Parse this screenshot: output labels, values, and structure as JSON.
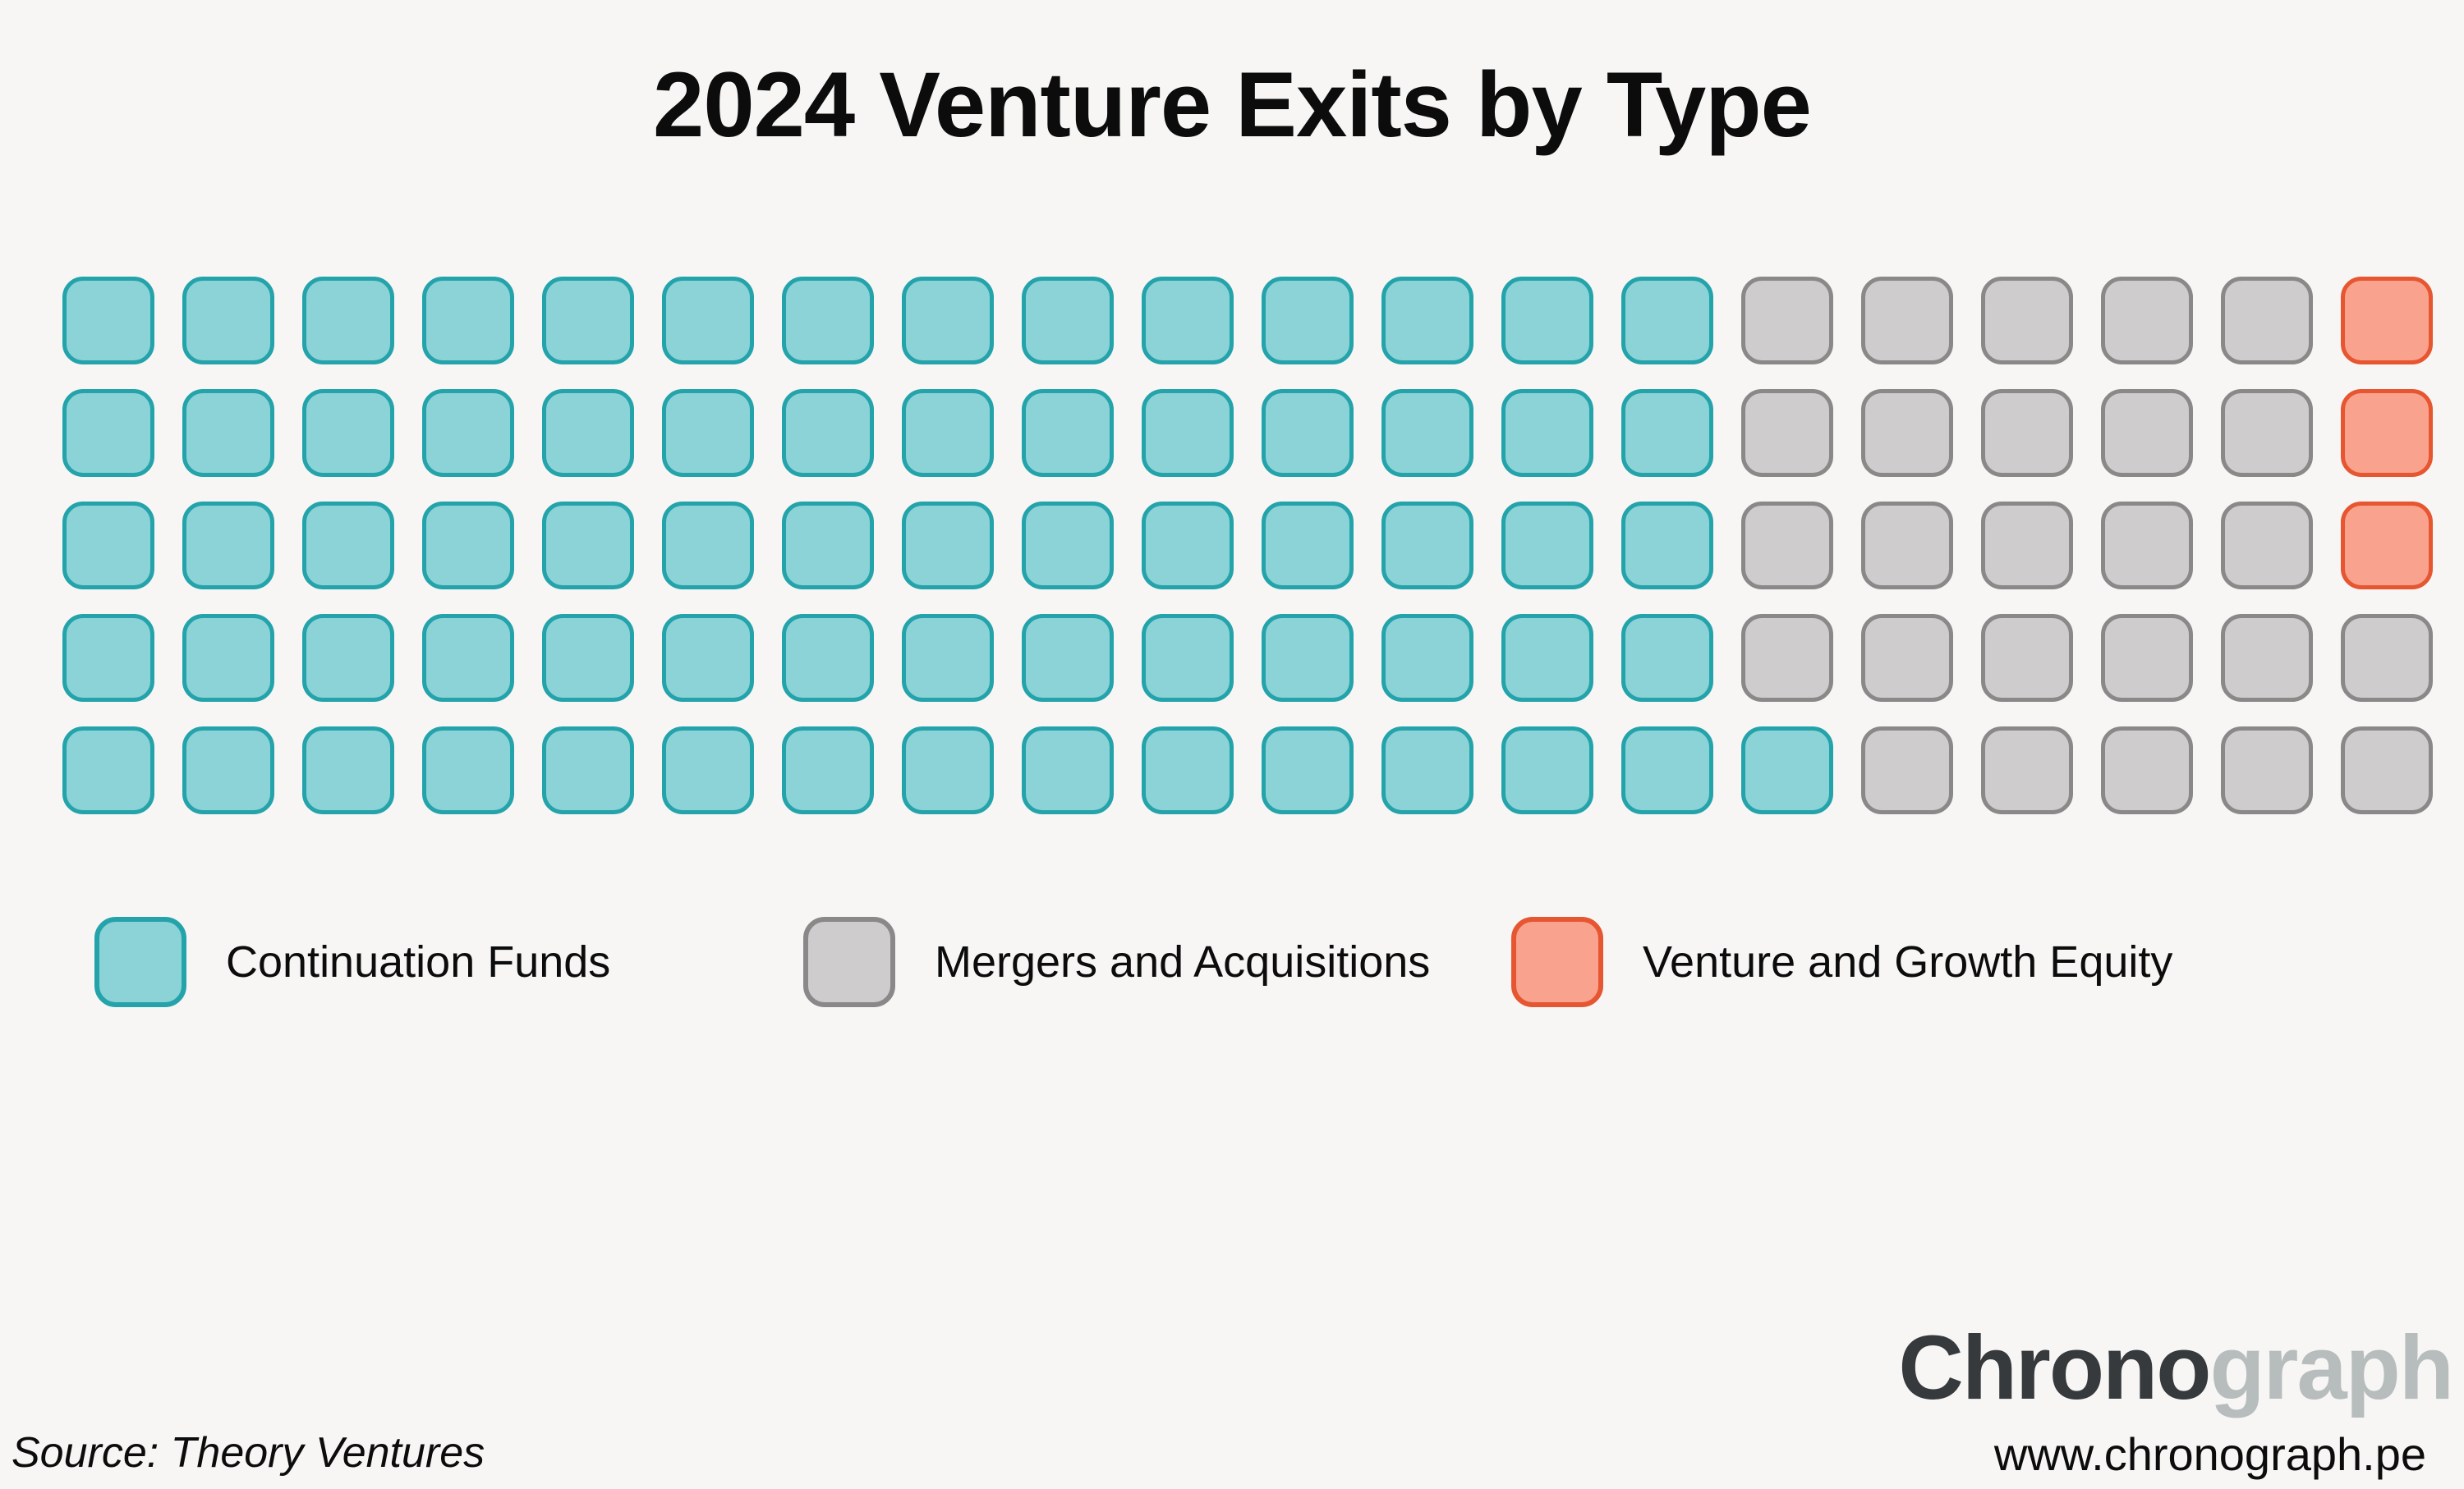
{
  "title": "2024 Venture Exits by Type",
  "chart_data": {
    "type": "waffle",
    "title": "2024 Venture Exits by Type",
    "grid": {
      "rows": 5,
      "columns": 20,
      "total_cells": 100,
      "fill_order": "column-major, bottom-to-top, left-to-right"
    },
    "categories": [
      "Continuation Funds",
      "Mergers and Acquisitions",
      "Venture and Growth Equity"
    ],
    "values": [
      71,
      26,
      3
    ],
    "series": [
      {
        "key": "C",
        "name": "Continuation Funds",
        "value": 71,
        "fill": "#8bd3d7",
        "border": "#24a3aa"
      },
      {
        "key": "M",
        "name": "Mergers and Acquisitions",
        "value": 26,
        "fill": "#cecccc",
        "border": "#8a8888"
      },
      {
        "key": "V",
        "name": "Venture and Growth Equity",
        "value": 3,
        "fill": "#f9a28d",
        "border": "#e55631"
      }
    ],
    "rows": [
      "CCCCCCCCCCCCCCMMMMMV",
      "CCCCCCCCCCCCCCMMMMMV",
      "CCCCCCCCCCCCCCMMMMMV",
      "CCCCCCCCCCCCCCMMMMMM",
      "CCCCCCCCCCCCCCCMMMMM"
    ],
    "legend_position": "bottom horizontal"
  },
  "source_note": "Source: Theory Ventures",
  "brand": {
    "name_dark": "Chrono",
    "name_light": "graph",
    "url": "www.chronograph.pe"
  },
  "colors": {
    "background": "#f7f6f5",
    "text": "#0c0c0c",
    "brand_dark": "#363a3c",
    "brand_light": "#b7bdbd"
  }
}
